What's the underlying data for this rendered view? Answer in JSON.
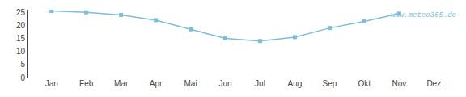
{
  "chart_data": {
    "type": "line",
    "categories": [
      "Jan",
      "Feb",
      "Mar",
      "Apr",
      "Mai",
      "Jun",
      "Jul",
      "Aug",
      "Sep",
      "Okt",
      "Nov",
      "Dez"
    ],
    "values": [
      25.5,
      25.0,
      24.0,
      22.0,
      18.5,
      15.0,
      14.0,
      15.5,
      19.0,
      21.5,
      24.5,
      null
    ],
    "color": "#7bbfd6",
    "marker": "square",
    "ylim": [
      0,
      26
    ],
    "yticks": [
      0,
      5,
      10,
      15,
      20,
      25
    ],
    "grid": false,
    "annotations": [
      "www.meteo365.de"
    ]
  }
}
